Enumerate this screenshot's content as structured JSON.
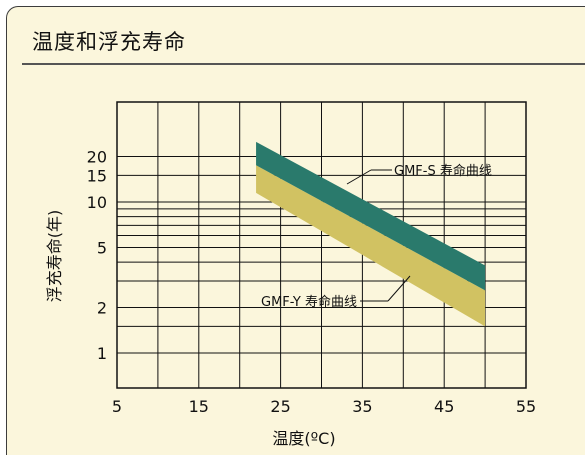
{
  "title": "温度和浮充寿命",
  "chart_data": {
    "type": "area",
    "xlabel": "温度(ºC)",
    "ylabel": "浮充寿命(年)",
    "x_ticks": [
      5,
      15,
      25,
      35,
      45,
      55
    ],
    "y_tick_labels": [
      1,
      2,
      5,
      10,
      15,
      20
    ],
    "xlim": [
      5,
      55
    ],
    "y_scale": "log",
    "grid": true,
    "series": [
      {
        "name": "GMF-S 寿命曲线",
        "color": "#2a7a6c",
        "x": [
          22,
          50
        ],
        "upper": [
          25,
          3.8
        ],
        "lower": [
          17.5,
          2.6
        ]
      },
      {
        "name": "GMF-Y 寿命曲线",
        "color": "#d1c262",
        "x": [
          22,
          50
        ],
        "lower": [
          11.5,
          1.5
        ]
      }
    ]
  }
}
